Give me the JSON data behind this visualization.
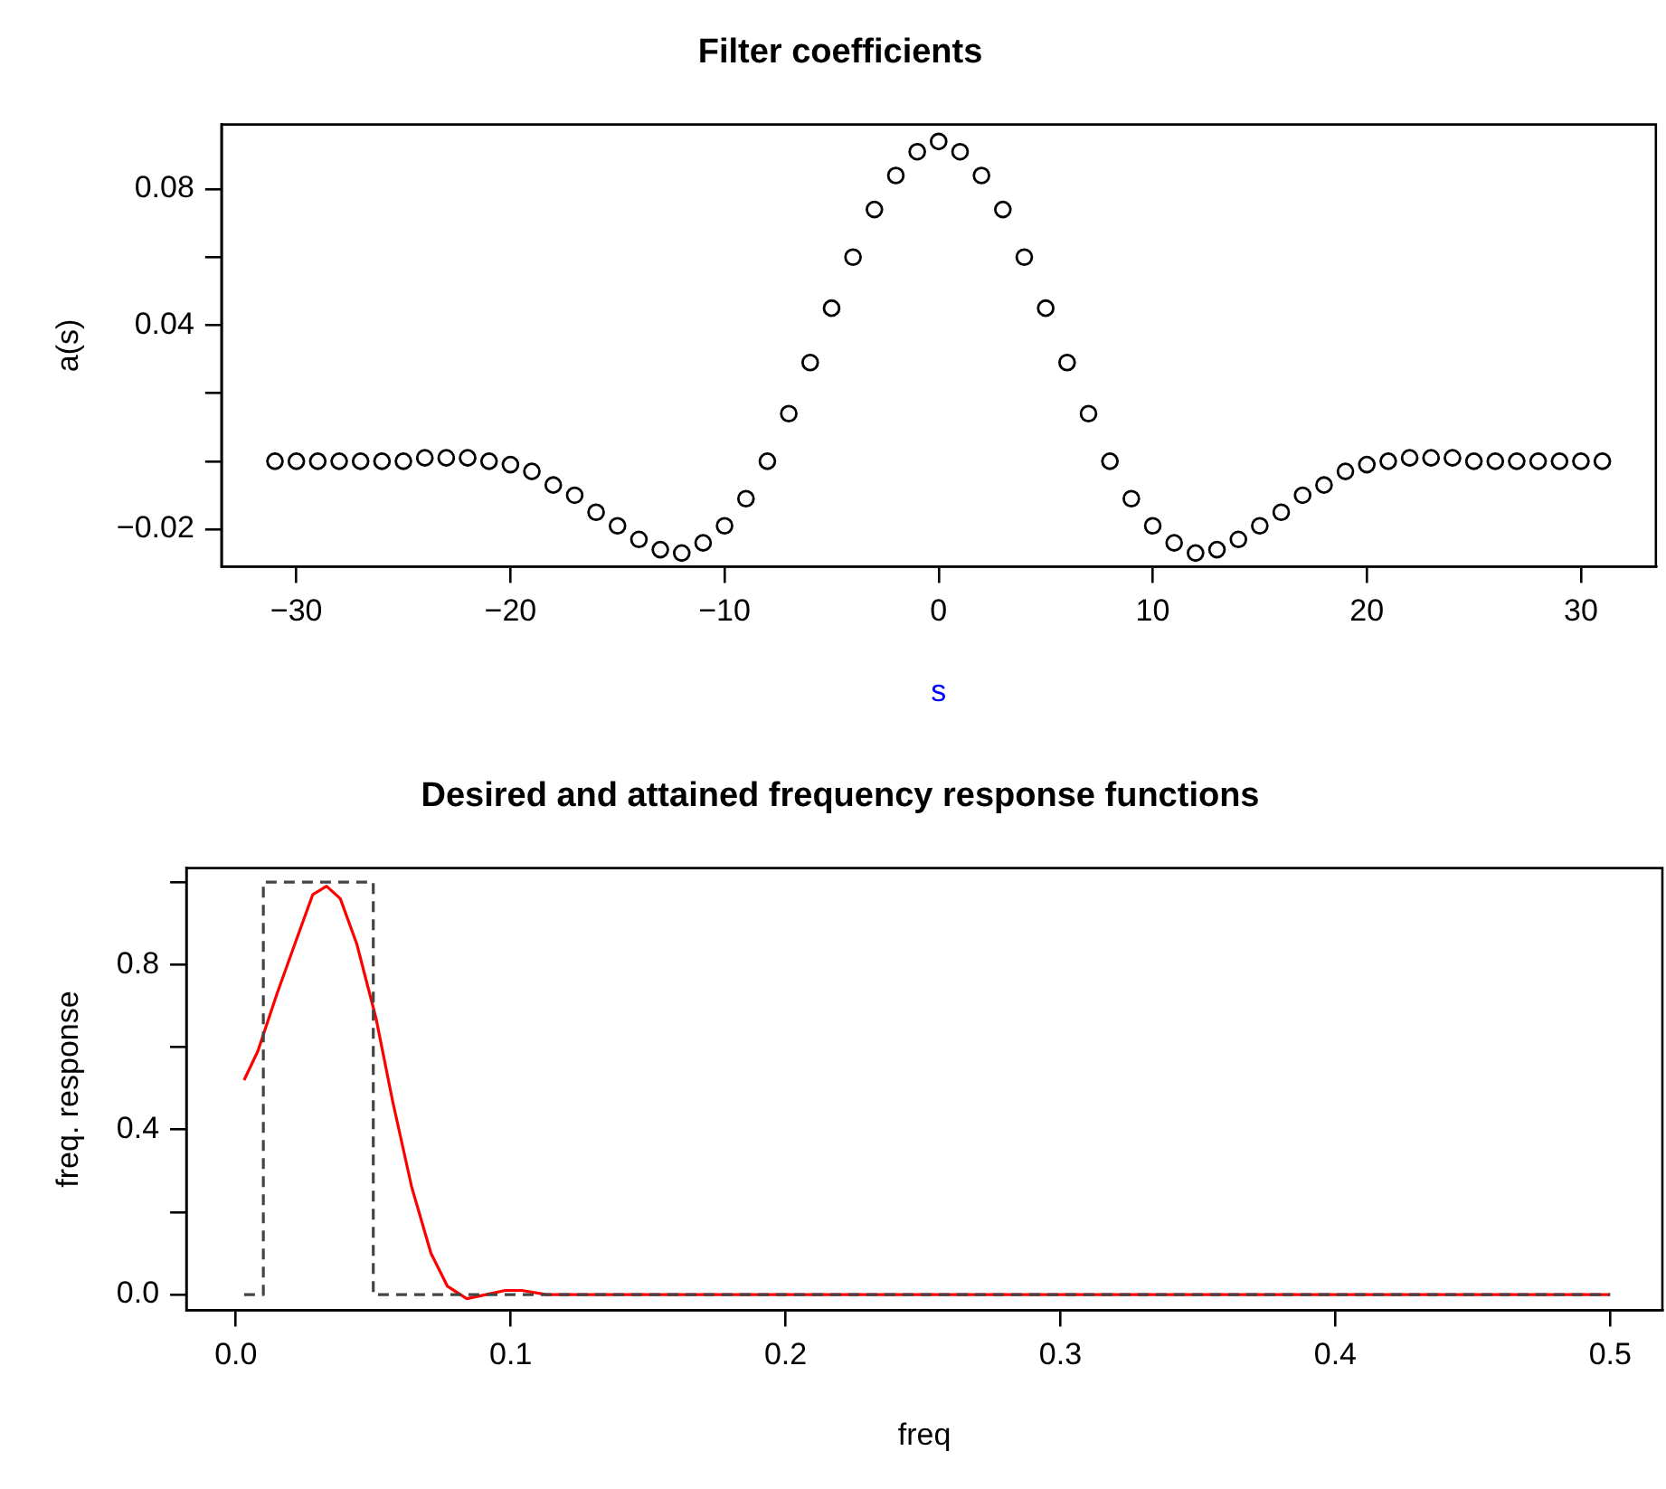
{
  "chart_data": [
    {
      "type": "scatter",
      "title": "Filter coefficients",
      "xlabel": "s",
      "ylabel": "a(s)",
      "x": [
        -31,
        -30,
        -29,
        -28,
        -27,
        -26,
        -25,
        -24,
        -23,
        -22,
        -21,
        -20,
        -19,
        -18,
        -17,
        -16,
        -15,
        -14,
        -13,
        -12,
        -11,
        -10,
        -9,
        -8,
        -7,
        -6,
        -5,
        -4,
        -3,
        -2,
        -1,
        0,
        1,
        2,
        3,
        4,
        5,
        6,
        7,
        8,
        9,
        10,
        11,
        12,
        13,
        14,
        15,
        16,
        17,
        18,
        19,
        20,
        21,
        22,
        23,
        24,
        25,
        26,
        27,
        28,
        29,
        30,
        31
      ],
      "values": [
        0,
        0,
        0,
        0,
        0,
        0,
        0,
        0.001,
        0.001,
        0.001,
        0,
        -0.001,
        -0.003,
        -0.007,
        -0.01,
        -0.015,
        -0.019,
        -0.023,
        -0.026,
        -0.027,
        -0.024,
        -0.019,
        -0.011,
        0,
        0.014,
        0.029,
        0.045,
        0.06,
        0.074,
        0.084,
        0.091,
        0.094,
        0.091,
        0.084,
        0.074,
        0.06,
        0.045,
        0.029,
        0.014,
        0,
        -0.011,
        -0.019,
        -0.024,
        -0.027,
        -0.026,
        -0.023,
        -0.019,
        -0.015,
        -0.01,
        -0.007,
        -0.003,
        -0.001,
        0,
        0.001,
        0.001,
        0.001,
        0,
        0,
        0,
        0,
        0,
        0,
        0
      ],
      "color": "#000000",
      "marker": "circle",
      "xlim": [
        -33.5,
        33.5
      ],
      "xticks": [
        {
          "value": -30,
          "label": "−30"
        },
        {
          "value": -20,
          "label": "−20"
        },
        {
          "value": -10,
          "label": "−10"
        },
        0,
        10,
        20,
        30
      ],
      "ylim": [
        -0.031,
        0.099
      ],
      "yticks": [
        {
          "value": -0.02,
          "label": "−0.02"
        },
        {
          "value": 0,
          "label": null
        },
        {
          "value": 0.02,
          "label": null
        },
        {
          "value": 0.04,
          "label": "0.04"
        },
        {
          "value": 0.06,
          "label": null
        },
        {
          "value": 0.08,
          "label": "0.08"
        }
      ],
      "grid": false,
      "legend": false
    },
    {
      "type": "line",
      "title": "Desired and attained frequency response functions",
      "xlabel": "freq",
      "ylabel": "freq. response",
      "series": [
        {
          "color": "#444444",
          "line_style": "dashed",
          "x": [
            0.003,
            0.01,
            0.01,
            0.05,
            0.05,
            0.5
          ],
          "values": [
            0,
            0,
            1,
            1,
            0,
            0
          ]
        },
        {
          "color": "#ff0000",
          "line_style": "solid",
          "x": [
            0.003,
            0.008,
            0.015,
            0.022,
            0.028,
            0.033,
            0.038,
            0.044,
            0.051,
            0.057,
            0.064,
            0.071,
            0.077,
            0.084,
            0.091,
            0.098,
            0.104,
            0.113,
            0.2,
            0.3,
            0.4,
            0.5
          ],
          "values": [
            0.52,
            0.59,
            0.73,
            0.86,
            0.97,
            0.99,
            0.96,
            0.85,
            0.67,
            0.47,
            0.26,
            0.1,
            0.02,
            -0.01,
            0.0,
            0.01,
            0.01,
            0.0,
            0,
            0,
            0,
            0
          ]
        }
      ],
      "marker": "none",
      "xlim": [
        -0.018,
        0.519
      ],
      "xticks": [
        {
          "value": 0,
          "label": "0.0"
        },
        0.1,
        0.2,
        0.3,
        0.4,
        0.5
      ],
      "ylim": [
        -0.038,
        1.034
      ],
      "yticks": [
        {
          "value": 0,
          "label": "0.0"
        },
        {
          "value": 0.2,
          "label": null
        },
        0.4,
        {
          "value": 0.6,
          "label": null
        },
        0.8,
        {
          "value": 1,
          "label": null
        }
      ],
      "grid": false,
      "legend": false
    }
  ]
}
